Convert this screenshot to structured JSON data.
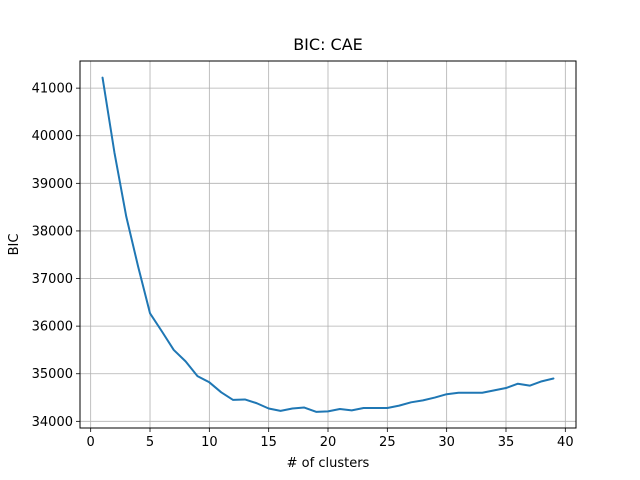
{
  "chart_data": {
    "type": "line",
    "title": "BIC: CAE",
    "xlabel": "# of clusters",
    "ylabel": "BIC",
    "xlim": [
      -0.9,
      40.9
    ],
    "ylim": [
      33860,
      41570
    ],
    "xticks": [
      0,
      5,
      10,
      15,
      20,
      25,
      30,
      35,
      40
    ],
    "yticks": [
      34000,
      35000,
      36000,
      37000,
      38000,
      39000,
      40000,
      41000
    ],
    "grid": true,
    "series": [
      {
        "color": "#1f77b4",
        "x": [
          1,
          2,
          3,
          4,
          5,
          6,
          7,
          8,
          9,
          10,
          11,
          12,
          13,
          14,
          15,
          16,
          17,
          18,
          19,
          20,
          21,
          22,
          23,
          24,
          25,
          26,
          27,
          28,
          29,
          30,
          31,
          32,
          33,
          34,
          35,
          36,
          37,
          38,
          39
        ],
        "values": [
          41220,
          39650,
          38300,
          37250,
          36270,
          35890,
          35500,
          35260,
          34950,
          34820,
          34610,
          34450,
          34460,
          34380,
          34270,
          34220,
          34270,
          34290,
          34200,
          34210,
          34260,
          34230,
          34280,
          34280,
          34280,
          34330,
          34400,
          34440,
          34500,
          34570,
          34600,
          34600,
          34600,
          34650,
          34700,
          34790,
          34750,
          34840,
          34900
        ]
      }
    ]
  }
}
